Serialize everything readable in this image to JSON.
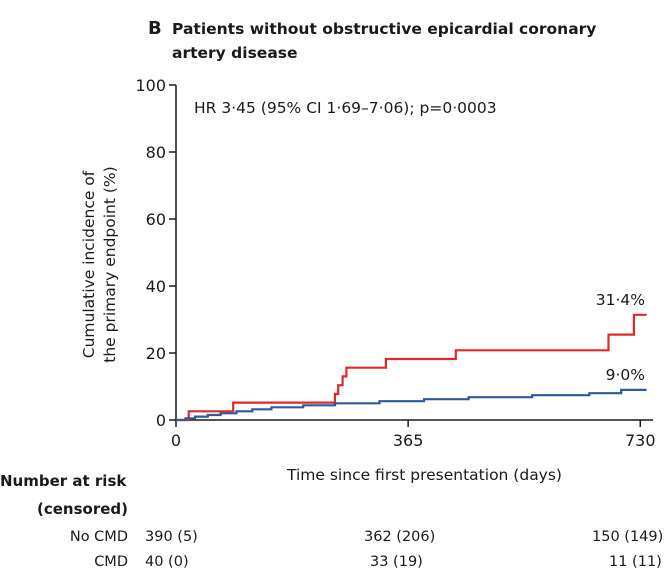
{
  "panel": {
    "letter": "B",
    "title_line1": "Patients without obstructive epicardial coronary",
    "title_line2": "artery disease"
  },
  "chart_data": {
    "type": "line",
    "title": "Patients without obstructive epicardial coronary artery disease",
    "xlabel": "Time since first presentation (days)",
    "ylabel_line1": "Cumulative incidence of",
    "ylabel_line2": "the primary endpoint (%)",
    "xlim": [
      0,
      750
    ],
    "ylim": [
      0,
      100
    ],
    "x_ticks": [
      0,
      365,
      730
    ],
    "x_tick_labels": [
      "0",
      "365",
      "730"
    ],
    "y_ticks": [
      0,
      20,
      40,
      60,
      80,
      100
    ],
    "y_tick_labels": [
      "0",
      "20",
      "40",
      "60",
      "80",
      "100"
    ],
    "grid": false,
    "annotation": "HR 3·45 (95% CI 1·69–7·06); p=0·0003",
    "series": [
      {
        "color": "#e0282b",
        "end_label": "31·4%",
        "x": [
          0,
          20,
          20,
          90,
          90,
          250,
          250,
          255,
          255,
          262,
          262,
          268,
          268,
          330,
          330,
          440,
          440,
          680,
          680,
          720,
          720,
          740
        ],
        "y": [
          0,
          0,
          2.6,
          2.6,
          5.2,
          5.2,
          7.8,
          7.8,
          10.4,
          10.4,
          13.0,
          13.0,
          15.6,
          15.6,
          18.2,
          18.2,
          20.8,
          20.8,
          25.5,
          25.5,
          31.4,
          31.4
        ]
      },
      {
        "color": "#2c5b9c",
        "end_label": "9·0%",
        "x": [
          0,
          15,
          15,
          30,
          30,
          50,
          50,
          70,
          70,
          95,
          95,
          120,
          120,
          150,
          150,
          200,
          200,
          250,
          250,
          320,
          320,
          390,
          390,
          460,
          460,
          560,
          560,
          650,
          650,
          700,
          700,
          740
        ],
        "y": [
          0,
          0,
          0.5,
          0.5,
          1.0,
          1.0,
          1.5,
          1.5,
          2.0,
          2.0,
          2.6,
          2.6,
          3.2,
          3.2,
          3.8,
          3.8,
          4.4,
          4.4,
          5.0,
          5.0,
          5.6,
          5.6,
          6.2,
          6.2,
          6.8,
          6.8,
          7.4,
          7.4,
          8.0,
          8.0,
          9.0,
          9.0
        ]
      }
    ]
  },
  "risk_table": {
    "header_line1": "Number at risk",
    "header_line2": "(censored)",
    "rows": [
      {
        "label": "No CMD",
        "values": [
          "390 (5)",
          "362 (206)",
          "150 (149)"
        ]
      },
      {
        "label": "CMD",
        "values": [
          "40 (0)",
          "33 (19)",
          "11 (11)"
        ]
      }
    ]
  }
}
